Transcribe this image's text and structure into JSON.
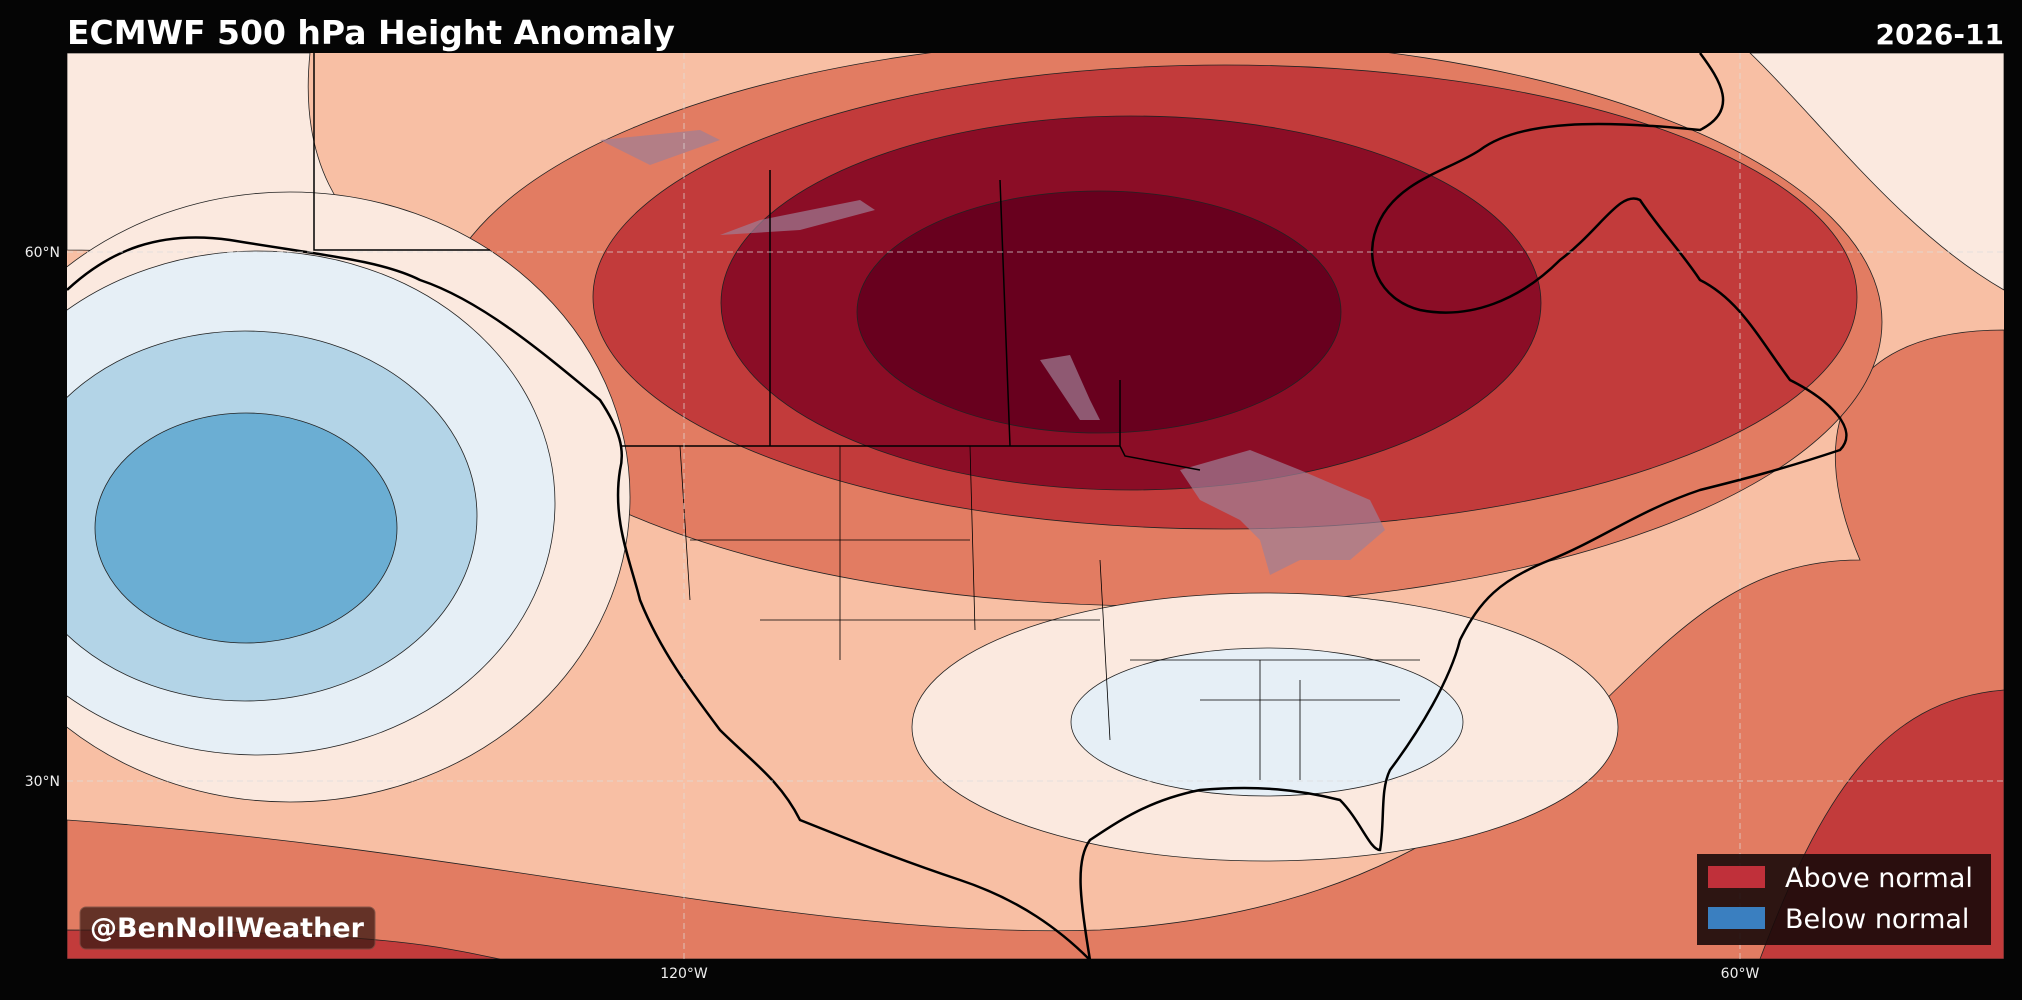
{
  "header": {
    "title": "ECMWF 500 hPa Height Anomaly",
    "date": "2026-11"
  },
  "legend": [
    {
      "label": "Above normal"
    },
    {
      "label": "Below normal"
    }
  ],
  "watermark": "@BenNollWeather",
  "gridlines": {
    "lat": [
      "60°N",
      "30°N"
    ],
    "lon": [
      "120°W",
      "60°W"
    ]
  }
}
